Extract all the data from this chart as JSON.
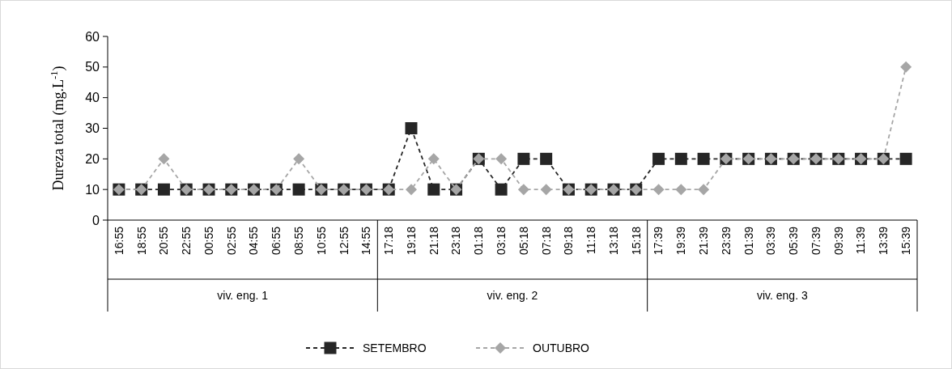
{
  "chart_data": {
    "type": "line",
    "ylabel": "Dureza total (mg.L$^{-1}$)",
    "categories": [
      "16:55",
      "18:55",
      "20:55",
      "22:55",
      "00:55",
      "02:55",
      "04:55",
      "06:55",
      "08:55",
      "10:55",
      "12:55",
      "14:55",
      "17:18",
      "19:18",
      "21:18",
      "23:18",
      "01:18",
      "03:18",
      "05:18",
      "07:18",
      "09:18",
      "11:18",
      "13:18",
      "15:18",
      "17:39",
      "19:39",
      "21:39",
      "23:39",
      "01:39",
      "03:39",
      "05:39",
      "07:39",
      "09:39",
      "11:39",
      "13:39",
      "15:39"
    ],
    "series": [
      {
        "name": "SETEMBRO",
        "color": "#262626",
        "marker": "square",
        "values": [
          10,
          10,
          10,
          10,
          10,
          10,
          10,
          10,
          10,
          10,
          10,
          10,
          10,
          30,
          10,
          10,
          20,
          10,
          20,
          20,
          10,
          10,
          10,
          10,
          20,
          20,
          20,
          20,
          20,
          20,
          20,
          20,
          20,
          20,
          20,
          20
        ]
      },
      {
        "name": "OUTUBRO",
        "color": "#a6a6a6",
        "marker": "diamond",
        "values": [
          10,
          10,
          20,
          10,
          10,
          10,
          10,
          10,
          20,
          10,
          10,
          10,
          10,
          10,
          20,
          10,
          20,
          20,
          10,
          10,
          10,
          10,
          10,
          10,
          10,
          10,
          10,
          20,
          20,
          20,
          20,
          20,
          20,
          20,
          20,
          50
        ]
      }
    ],
    "annotations": [
      "viv. eng. 1",
      "viv. eng. 2",
      "viv. eng. 3"
    ],
    "ylim": [
      0,
      60
    ],
    "yticks": [
      0,
      10,
      20,
      30,
      40,
      50,
      60
    ],
    "grid": false,
    "legend": "bottom",
    "line_style": "dashed"
  }
}
